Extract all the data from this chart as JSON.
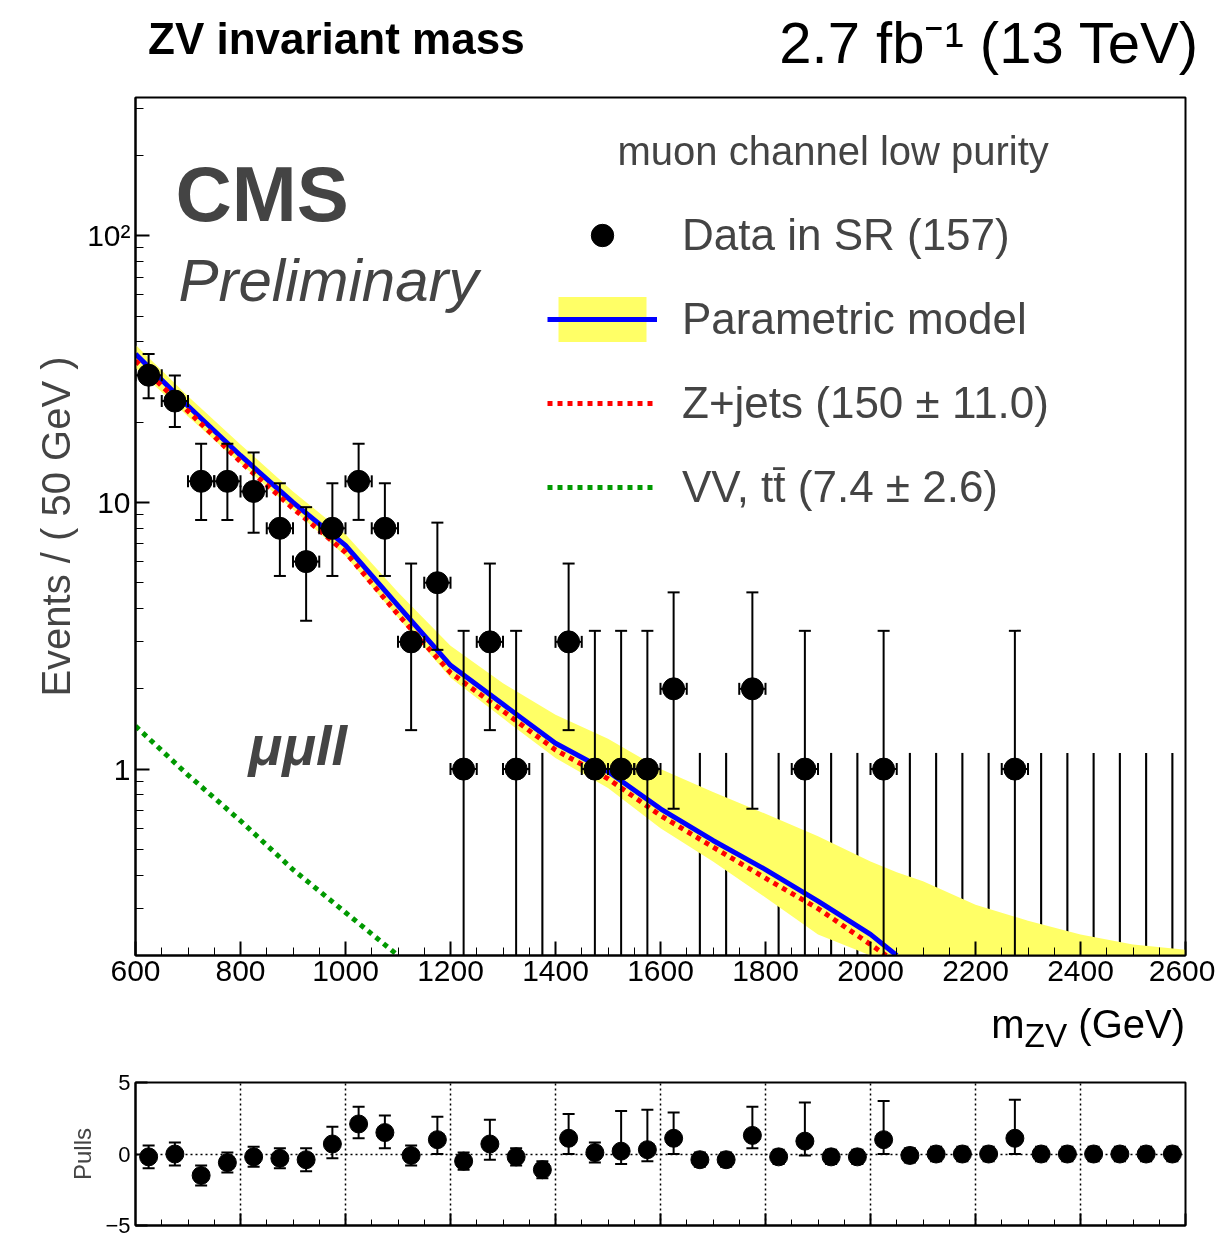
{
  "chart_data": [
    {
      "type": "scatter",
      "title": "ZV invariant mass",
      "subtitle": "2.7 fb⁻¹ (13 TeV)",
      "xlabel": "m$_{ZV}$ (GeV)",
      "ylabel": "Events / ( 50 GeV )",
      "legend_title": "muon channel low purity",
      "annotations": [
        "CMS",
        "Preliminary",
        "μμll"
      ],
      "xlim": [
        600,
        2600
      ],
      "ylim": [
        0.2,
        330
      ],
      "xticks": [
        600,
        800,
        1000,
        1200,
        1400,
        1600,
        1800,
        2000,
        2200,
        2400,
        2600
      ],
      "yticks": [
        1,
        10,
        {
          "value": 100,
          "label": "10²"
        }
      ],
      "log": true,
      "grid": false,
      "legend": "top right",
      "series": [
        {
          "name": "Data in SR (157)",
          "type": "scatter",
          "marker": "circle",
          "color": "#000000",
          "x": [
            625,
            675,
            725,
            775,
            825,
            875,
            925,
            975,
            1025,
            1075,
            1125,
            1175,
            1225,
            1275,
            1325,
            1425,
            1475,
            1525,
            1575,
            1625,
            1775,
            1875,
            2025,
            2275
          ],
          "values": [
            30,
            24,
            12,
            12,
            11,
            8,
            6,
            8,
            12,
            8,
            3,
            5,
            1,
            3,
            1,
            3,
            1,
            1,
            1,
            2,
            2,
            1,
            1,
            1
          ],
          "errors": [
            [
              24.6,
              36.0
            ],
            [
              19.2,
              29.9
            ],
            [
              8.6,
              16.6
            ],
            [
              8.6,
              16.6
            ],
            [
              7.7,
              15.4
            ],
            [
              5.3,
              11.8
            ],
            [
              3.6,
              9.6
            ],
            [
              5.3,
              11.8
            ],
            [
              8.6,
              16.6
            ],
            [
              5.3,
              11.8
            ],
            [
              1.4,
              5.9
            ],
            [
              2.8,
              8.4
            ],
            [
              0.2,
              3.3
            ],
            [
              1.4,
              5.9
            ],
            [
              0.2,
              3.3
            ],
            [
              1.4,
              5.9
            ],
            [
              0.2,
              3.3
            ],
            [
              0.2,
              3.3
            ],
            [
              0.2,
              3.3
            ],
            [
              0.71,
              4.6
            ],
            [
              0.71,
              4.6
            ],
            [
              0.2,
              3.3
            ],
            [
              0.2,
              3.3
            ],
            [
              0.2,
              3.3
            ]
          ],
          "xerrors": [
            25,
            25,
            25,
            25,
            25,
            25,
            25,
            25,
            25,
            25,
            25,
            25,
            25,
            25,
            25,
            25,
            25,
            25,
            25,
            25,
            25,
            25,
            25,
            25
          ]
        },
        {
          "type": "bar",
          "color": "#000000",
          "x": [
            1375,
            1675,
            1725,
            1825,
            1925,
            1975,
            2075,
            2125,
            2175,
            2225,
            2325,
            2375,
            2425,
            2475,
            2525,
            2575
          ],
          "base": [
            0.2,
            0.2,
            0.2,
            0.2,
            0.2,
            0.2,
            0.2,
            0.2,
            0.2,
            0.2,
            0.2,
            0.2,
            0.2,
            0.2,
            0.2,
            0.2
          ],
          "values": [
            0.95,
            0.95,
            0.95,
            0.95,
            0.95,
            0.95,
            0.95,
            0.95,
            0.95,
            0.95,
            0.95,
            0.95,
            0.95,
            0.95,
            0.95,
            0.95
          ]
        },
        {
          "name": "Parametric model",
          "type": "line",
          "color": "#0000ff",
          "line_style": "solid",
          "x": [
            600,
            700,
            800,
            900,
            1000,
            1100,
            1200,
            1300,
            1400,
            1500,
            1600,
            1700,
            1800,
            1900,
            2000,
            2050,
            2100,
            2200,
            2300,
            2400,
            2500,
            2600
          ],
          "values": [
            36,
            23,
            15,
            10,
            6.9,
            4.1,
            2.45,
            1.75,
            1.25,
            0.98,
            0.71,
            0.54,
            0.42,
            0.32,
            0.24,
            0.2,
            null,
            null,
            null,
            null,
            null,
            null
          ],
          "lower": [
            32,
            21,
            14,
            9.4,
            6.3,
            3.7,
            2.2,
            1.55,
            1.1,
            0.85,
            0.6,
            0.45,
            0.33,
            0.24,
            0.2,
            0.2,
            0.2,
            0.2,
            0.2,
            0.2,
            0.2,
            0.2
          ],
          "upper": [
            39,
            25,
            16.5,
            11,
            7.6,
            4.6,
            2.9,
            2.1,
            1.6,
            1.3,
            1.0,
            0.82,
            0.68,
            0.56,
            0.45,
            0.41,
            0.38,
            0.31,
            0.27,
            0.24,
            0.22,
            0.21
          ]
        },
        {
          "name": "Z+jets (150 ± 11.0)",
          "type": "line",
          "color": "#ff0000",
          "line_style": "dotted",
          "x": [
            600,
            700,
            800,
            900,
            1000,
            1100,
            1200,
            1300,
            1400,
            1500,
            1600,
            1700,
            1800,
            1900,
            2000,
            2030
          ],
          "values": [
            34,
            22,
            14.2,
            9.5,
            6.5,
            3.8,
            2.3,
            1.65,
            1.18,
            0.92,
            0.67,
            0.51,
            0.39,
            0.3,
            0.22,
            0.2
          ]
        },
        {
          "name": "VV, tt̄ (7.4 ± 2.6)",
          "type": "line",
          "color": "#009900",
          "line_style": "dotted",
          "x": [
            600,
            700,
            800,
            900,
            1000,
            1100
          ],
          "values": [
            1.45,
            0.95,
            0.64,
            0.42,
            0.29,
            0.2
          ]
        }
      ]
    },
    {
      "type": "scatter",
      "ylabel": "Pulls",
      "xlim": [
        600,
        2600
      ],
      "ylim": [
        -5,
        5
      ],
      "xticks": [
        800,
        1000,
        1200,
        1400,
        1600,
        1800,
        2000,
        2200,
        2400,
        2600
      ],
      "yticks": [
        {
          "value": -5,
          "label": "−5"
        },
        0,
        5
      ],
      "grid": true,
      "tick_labels": "y",
      "marker": "circle",
      "x": [
        625,
        675,
        725,
        775,
        825,
        875,
        925,
        975,
        1025,
        1075,
        1125,
        1175,
        1225,
        1275,
        1325,
        1375,
        1425,
        1475,
        1525,
        1575,
        1625,
        1675,
        1725,
        1775,
        1825,
        1875,
        1925,
        1975,
        2025,
        2075,
        2125,
        2175,
        2225,
        2275,
        2325,
        2375,
        2425,
        2475,
        2525,
        2575
      ],
      "values": [
        -0.2,
        0.0,
        -1.5,
        -0.6,
        -0.2,
        -0.3,
        -0.4,
        0.7,
        2.1,
        1.5,
        -0.1,
        1.0,
        -0.5,
        0.7,
        -0.2,
        -1.1,
        1.1,
        0.1,
        0.2,
        0.3,
        1.1,
        -0.4,
        -0.4,
        1.3,
        -0.2,
        0.9,
        -0.2,
        -0.2,
        1.0,
        -0.1,
        0,
        0,
        0,
        1.1,
        0,
        0,
        0,
        0,
        0,
        0
      ],
      "errors": [
        0.8,
        0.8,
        0.7,
        0.7,
        0.7,
        0.7,
        0.8,
        [
          -0.3,
          1.9
        ],
        [
          1.1,
          3.3
        ],
        [
          0.4,
          2.7
        ],
        0.7,
        [
          0.0,
          2.6
        ],
        0.6,
        [
          -0.4,
          2.4
        ],
        0.6,
        0.6,
        [
          0.0,
          2.8
        ],
        0.7,
        [
          -0.7,
          3.0
        ],
        [
          -0.5,
          3.1
        ],
        [
          0.0,
          2.9
        ],
        0.5,
        0.5,
        [
          0.4,
          3.3
        ],
        0.5,
        [
          -0.1,
          3.6
        ],
        0.5,
        0.5,
        [
          0.0,
          3.7
        ],
        0.5,
        0.5,
        0.5,
        0.5,
        [
          0.0,
          3.8
        ],
        0.5,
        0.5,
        0.5,
        0.5,
        0.5,
        0.5
      ]
    }
  ]
}
